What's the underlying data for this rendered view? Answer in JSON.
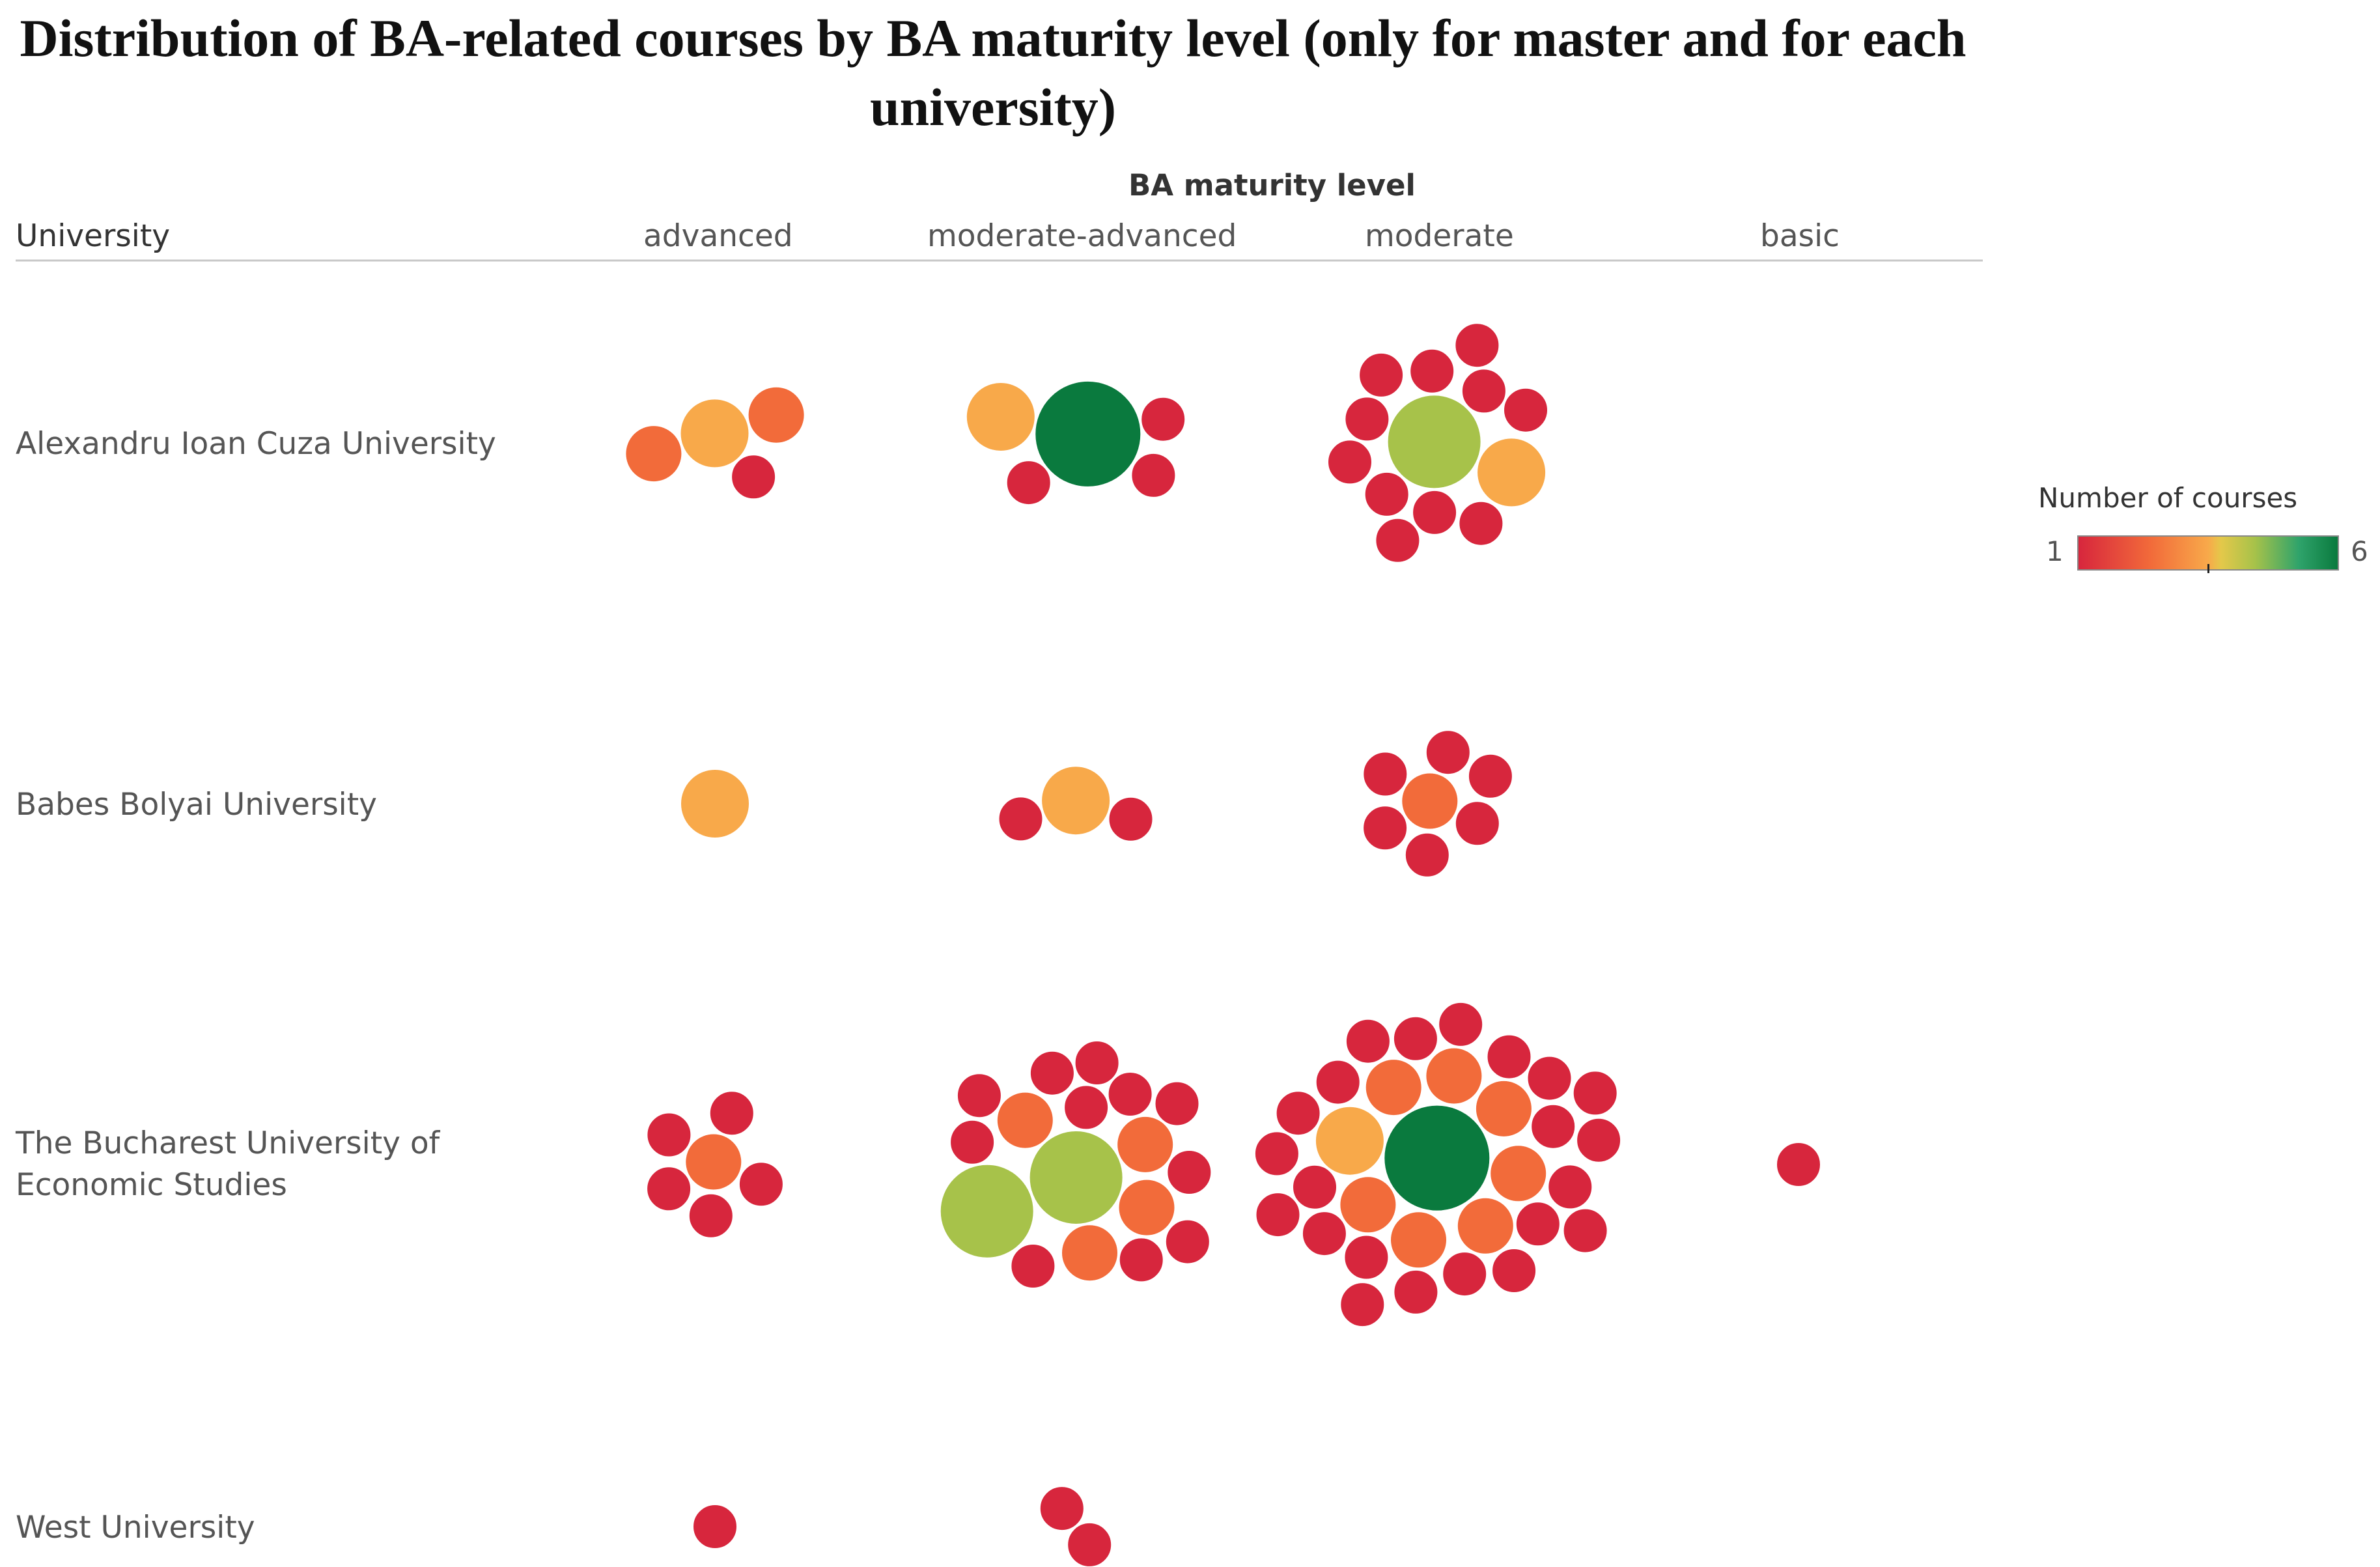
{
  "chart_data": {
    "type": "packed-bubble",
    "title": "Distribution of BA-related courses by BA maturity level (only for master and for each university)",
    "column_header_title": "BA maturity level",
    "row_header_title": "University",
    "columns": [
      "advanced",
      "moderate-advanced",
      "moderate",
      "basic"
    ],
    "rows": [
      "Alexandru Ioan Cuza University",
      "Babes Bolyai University",
      "The Bucharest University of Economic Studies",
      "West University"
    ],
    "color_legend": {
      "title": "Number of courses",
      "min": "1",
      "max": "6"
    },
    "color_scale": {
      "1": "#d7263d",
      "2": "#f26b3a",
      "3": "#f8a94a",
      "4": "#e4c84a",
      "5": "#a7c24a",
      "6": "#0a7a3e"
    },
    "cells": [
      {
        "university": "Alexandru Ioan Cuza University",
        "level": "advanced",
        "counts": [
          2,
          2,
          1,
          3
        ]
      },
      {
        "university": "Alexandru Ioan Cuza University",
        "level": "moderate-advanced",
        "counts": [
          1,
          1,
          1,
          3,
          6
        ]
      },
      {
        "university": "Alexandru Ioan Cuza University",
        "level": "moderate",
        "counts": [
          1,
          1,
          1,
          1,
          1,
          1,
          1,
          1,
          1,
          1,
          1,
          3,
          5
        ]
      },
      {
        "university": "Babes Bolyai University",
        "level": "advanced",
        "counts": [
          3
        ]
      },
      {
        "university": "Babes Bolyai University",
        "level": "moderate-advanced",
        "counts": [
          1,
          1,
          3
        ]
      },
      {
        "university": "Babes Bolyai University",
        "level": "moderate",
        "counts": [
          1,
          1,
          1,
          1,
          1,
          1,
          2
        ]
      },
      {
        "university": "The Bucharest University of Economic Studies",
        "level": "advanced",
        "counts": [
          1,
          1,
          1,
          1,
          1,
          2
        ]
      },
      {
        "university": "The Bucharest University of Economic Studies",
        "level": "moderate-advanced",
        "counts": [
          1,
          1,
          1,
          1,
          1,
          1,
          1,
          1,
          1,
          1,
          1,
          2,
          2,
          2,
          2,
          5,
          5
        ]
      },
      {
        "university": "The Bucharest University of Economic Studies",
        "level": "moderate",
        "counts": [
          1,
          1,
          1,
          1,
          1,
          1,
          1,
          1,
          1,
          1,
          1,
          1,
          1,
          1,
          1,
          1,
          1,
          1,
          1,
          1,
          1,
          1,
          2,
          2,
          2,
          2,
          2,
          2,
          2,
          3,
          6
        ]
      },
      {
        "university": "The Bucharest University of Economic Studies",
        "level": "basic",
        "counts": [
          1
        ]
      },
      {
        "university": "West University",
        "level": "advanced",
        "counts": [
          1
        ]
      },
      {
        "university": "West University",
        "level": "moderate-advanced",
        "counts": [
          1,
          1
        ]
      }
    ]
  }
}
